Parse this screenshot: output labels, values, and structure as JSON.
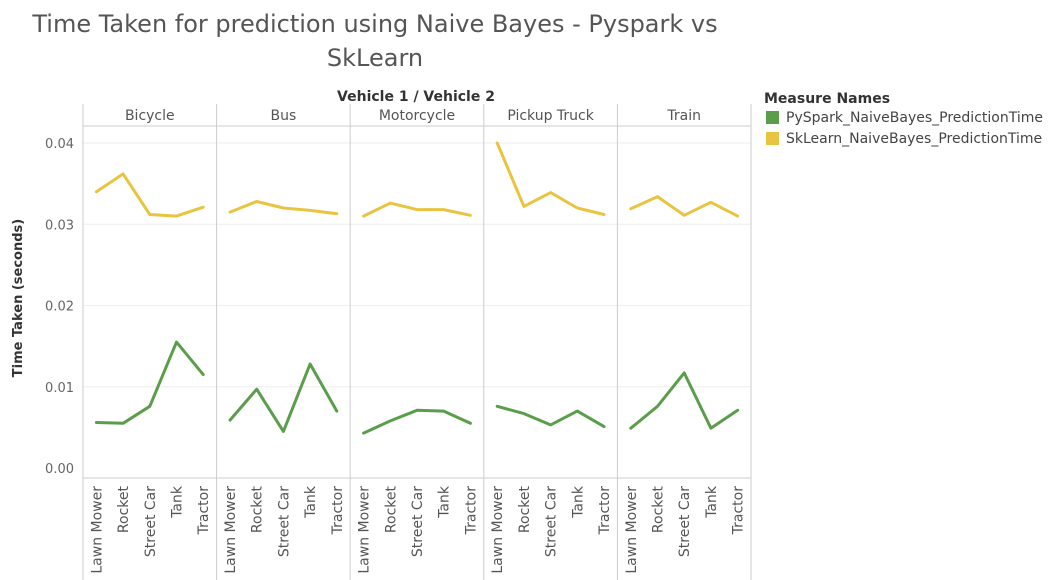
{
  "title_line1": "Time Taken for prediction using Naive Bayes - Pyspark vs",
  "title_line2": "SkLearn",
  "column_header": "Vehicle 1  /  Vehicle 2",
  "legend": {
    "title": "Measure Names",
    "items": [
      {
        "label": "PySpark_NaiveBayes_PredictionTime",
        "color": "#5a9e4b"
      },
      {
        "label": "SkLearn_NaiveBayes_PredictionTime",
        "color": "#e8c440"
      }
    ]
  },
  "chart_data": {
    "type": "line",
    "ylabel": "Time Taken (seconds)",
    "ylim": [
      0,
      0.042
    ],
    "yticks": [
      {
        "value": 0.0,
        "label": "0.00"
      },
      {
        "value": 0.01,
        "label": "0.01"
      },
      {
        "value": 0.02,
        "label": "0.02"
      },
      {
        "value": 0.03,
        "label": "0.03"
      },
      {
        "value": 0.04,
        "label": "0.04"
      }
    ],
    "categories": [
      "Lawn Mower",
      "Rocket",
      "Street Car",
      "Tank",
      "Tractor"
    ],
    "panels": [
      {
        "name": "Bicycle",
        "series": [
          {
            "name": "PySpark_NaiveBayes_PredictionTime",
            "values": [
              0.0056,
              0.0055,
              0.0076,
              0.0155,
              0.0115
            ]
          },
          {
            "name": "SkLearn_NaiveBayes_PredictionTime",
            "values": [
              0.034,
              0.0362,
              0.0312,
              0.031,
              0.0321
            ]
          }
        ]
      },
      {
        "name": "Bus",
        "series": [
          {
            "name": "PySpark_NaiveBayes_PredictionTime",
            "values": [
              0.0059,
              0.0097,
              0.0045,
              0.0128,
              0.007
            ]
          },
          {
            "name": "SkLearn_NaiveBayes_PredictionTime",
            "values": [
              0.0315,
              0.0328,
              0.032,
              0.0317,
              0.0313
            ]
          }
        ]
      },
      {
        "name": "Motorcycle",
        "series": [
          {
            "name": "PySpark_NaiveBayes_PredictionTime",
            "values": [
              0.0043,
              0.0058,
              0.0071,
              0.007,
              0.0055
            ]
          },
          {
            "name": "SkLearn_NaiveBayes_PredictionTime",
            "values": [
              0.031,
              0.0326,
              0.0318,
              0.0318,
              0.0311
            ]
          }
        ]
      },
      {
        "name": "Pickup Truck",
        "series": [
          {
            "name": "PySpark_NaiveBayes_PredictionTime",
            "values": [
              0.0076,
              0.0067,
              0.0053,
              0.007,
              0.0051
            ]
          },
          {
            "name": "SkLearn_NaiveBayes_PredictionTime",
            "values": [
              0.04,
              0.0322,
              0.0339,
              0.032,
              0.0312
            ]
          }
        ]
      },
      {
        "name": "Train",
        "series": [
          {
            "name": "PySpark_NaiveBayes_PredictionTime",
            "values": [
              0.0049,
              0.0076,
              0.0117,
              0.0049,
              0.0071
            ]
          },
          {
            "name": "SkLearn_NaiveBayes_PredictionTime",
            "values": [
              0.0319,
              0.0334,
              0.0311,
              0.0327,
              0.031
            ]
          }
        ]
      }
    ]
  }
}
